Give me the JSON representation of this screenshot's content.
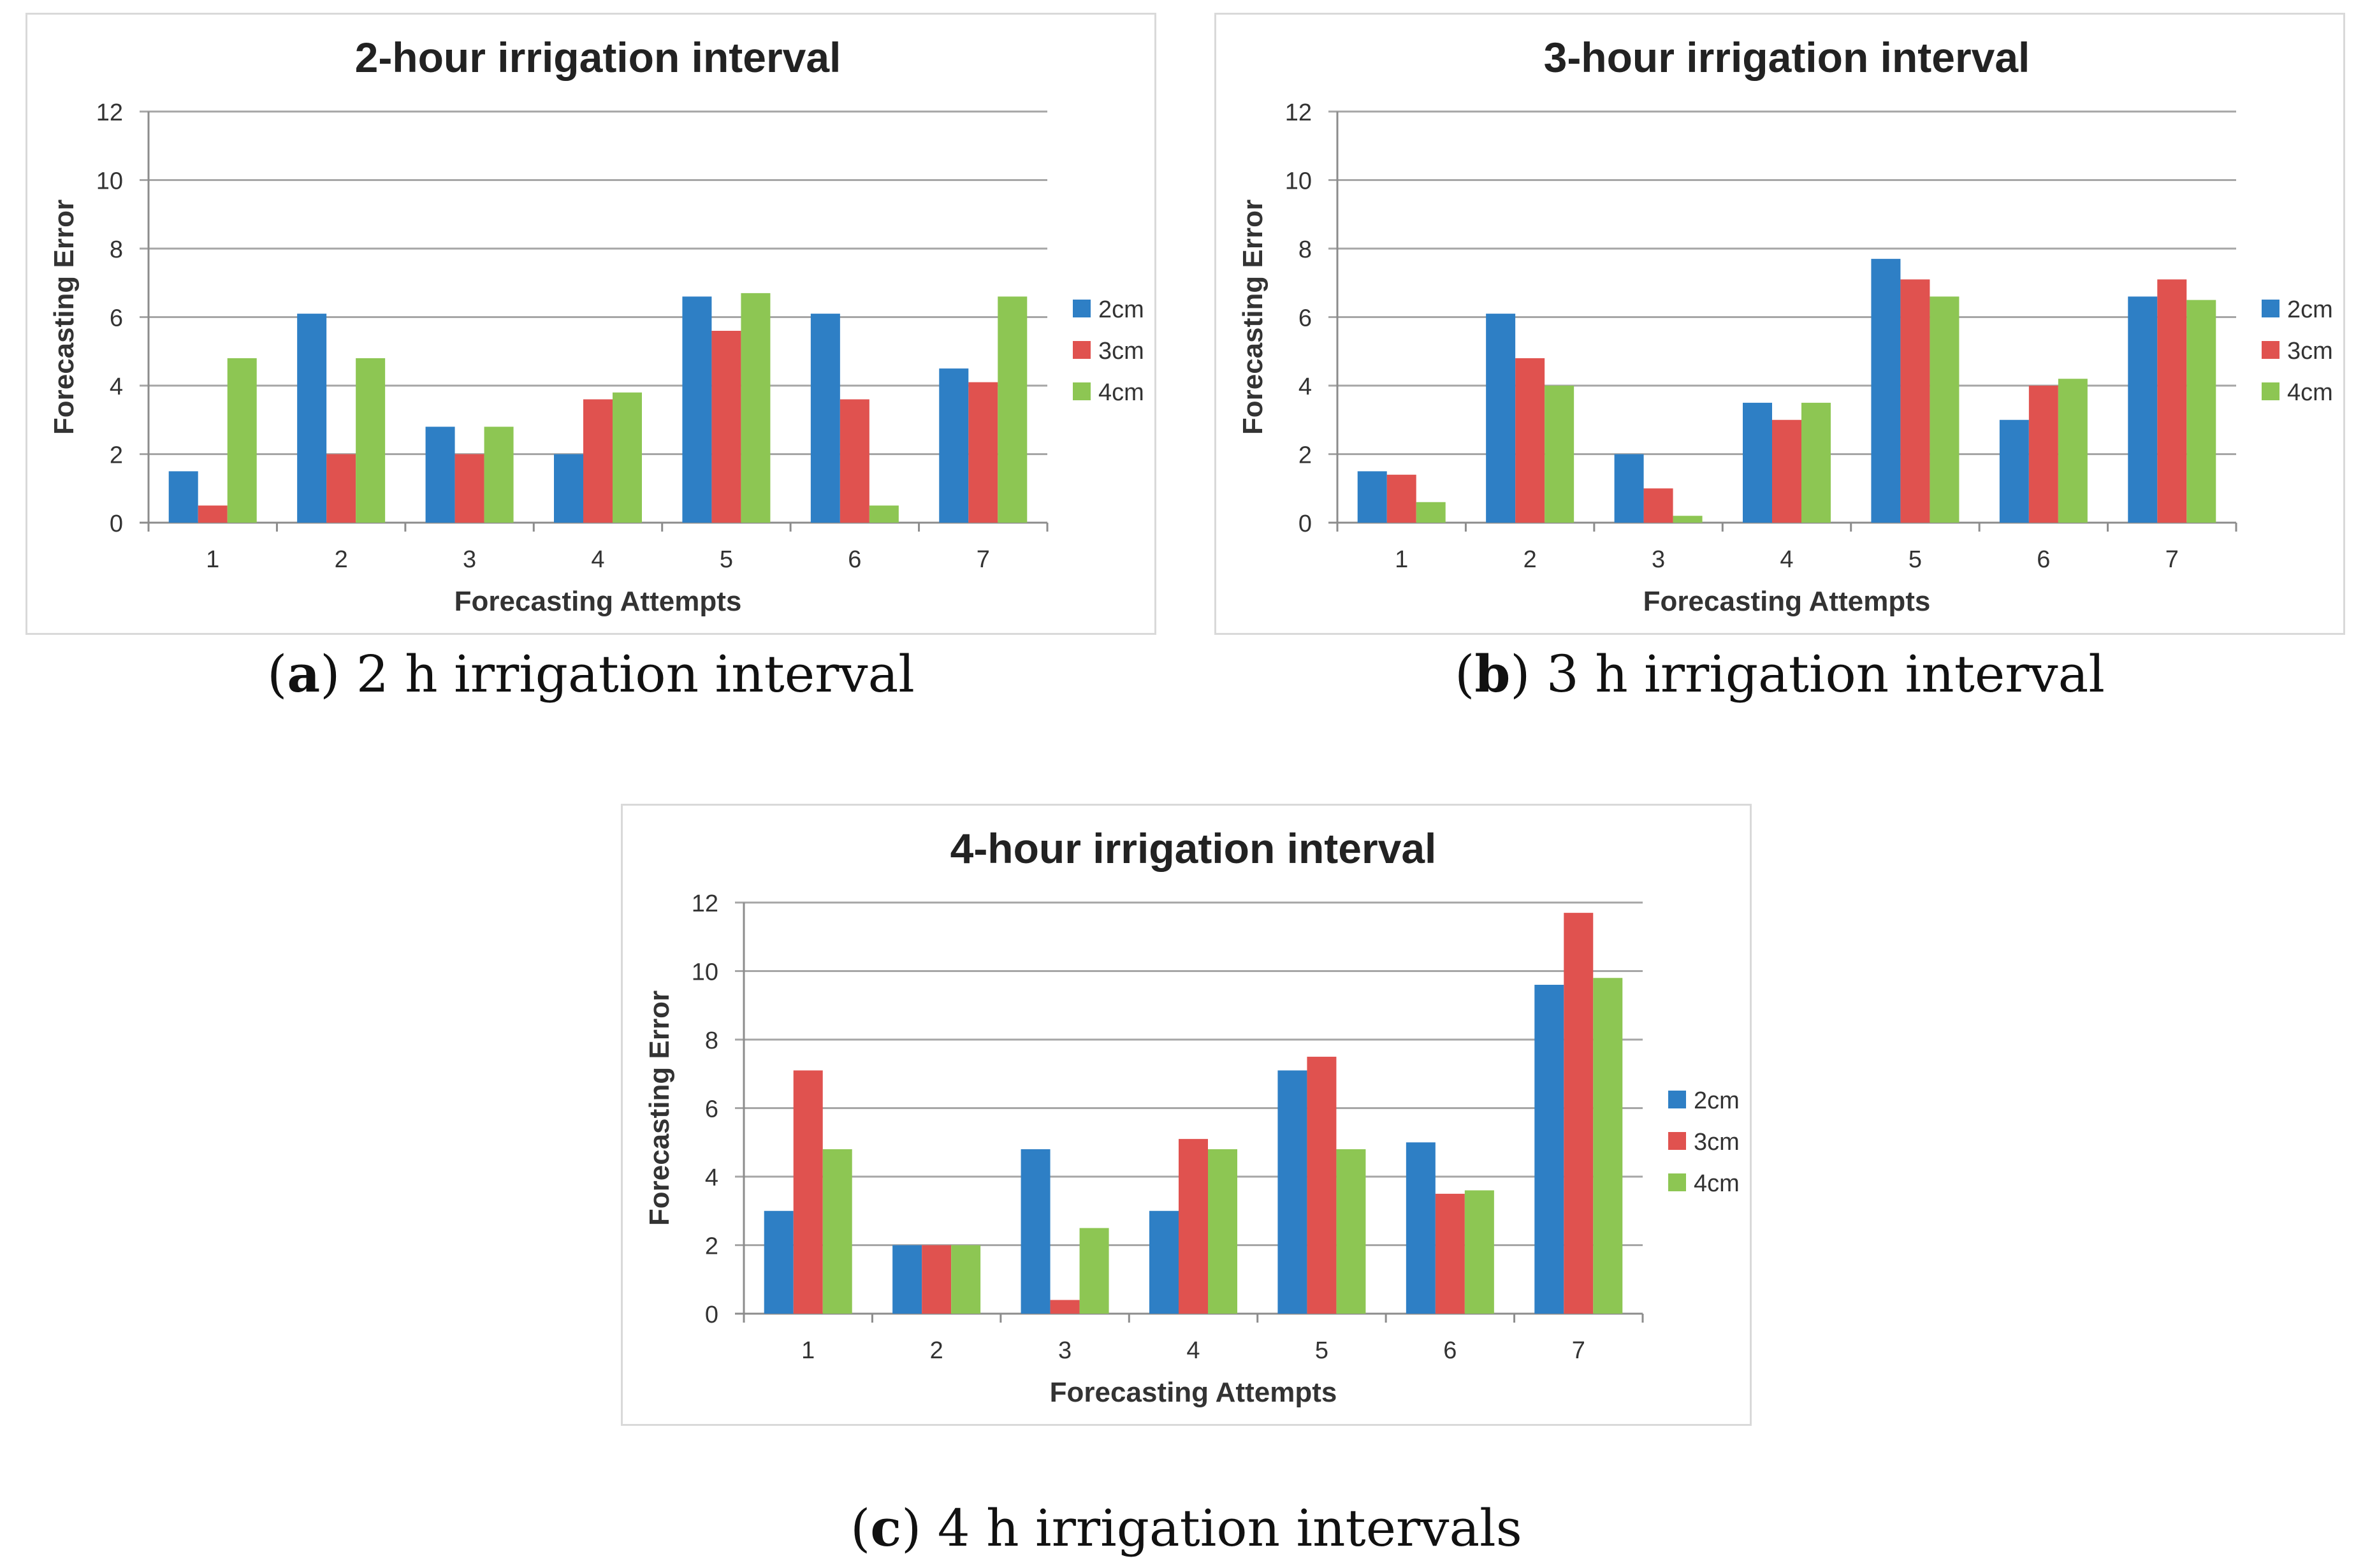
{
  "chart_data": [
    {
      "type": "bar",
      "title": "2-hour irrigation interval",
      "xlabel": "Forecasting Attempts",
      "ylabel": "Forecasting Error",
      "categories": [
        "1",
        "2",
        "3",
        "4",
        "5",
        "6",
        "7"
      ],
      "ylim": [
        0,
        12
      ],
      "yticks": [
        "0",
        "2",
        "4",
        "6",
        "8",
        "10",
        "12"
      ],
      "series": [
        {
          "name": "2cm",
          "color": "#2e7fc5",
          "values": [
            1.5,
            6.1,
            2.8,
            2.0,
            6.6,
            6.1,
            4.5
          ]
        },
        {
          "name": "3cm",
          "color": "#e0524f",
          "values": [
            0.5,
            2.0,
            2.0,
            3.6,
            5.6,
            3.6,
            4.1
          ]
        },
        {
          "name": "4cm",
          "color": "#8dc653",
          "values": [
            4.8,
            4.8,
            2.8,
            3.8,
            6.7,
            0.5,
            6.6
          ]
        }
      ],
      "grid": true,
      "legend": "right"
    },
    {
      "type": "bar",
      "title": "3-hour irrigation interval",
      "xlabel": "Forecasting Attempts",
      "ylabel": "Forecasting Error",
      "categories": [
        "1",
        "2",
        "3",
        "4",
        "5",
        "6",
        "7"
      ],
      "ylim": [
        0,
        12
      ],
      "yticks": [
        "0",
        "2",
        "4",
        "6",
        "8",
        "10",
        "12"
      ],
      "series": [
        {
          "name": "2cm",
          "color": "#2e7fc5",
          "values": [
            1.5,
            6.1,
            2.0,
            3.5,
            7.7,
            3.0,
            6.6
          ]
        },
        {
          "name": "3cm",
          "color": "#e0524f",
          "values": [
            1.4,
            4.8,
            1.0,
            3.0,
            7.1,
            4.0,
            7.1
          ]
        },
        {
          "name": "4cm",
          "color": "#8dc653",
          "values": [
            0.6,
            4.0,
            0.2,
            3.5,
            6.6,
            4.2,
            6.5
          ]
        }
      ],
      "grid": true,
      "legend": "right"
    },
    {
      "type": "bar",
      "title": "4-hour irrigation interval",
      "xlabel": "Forecasting Attempts",
      "ylabel": "Forecasting Error",
      "categories": [
        "1",
        "2",
        "3",
        "4",
        "5",
        "6",
        "7"
      ],
      "ylim": [
        0,
        12
      ],
      "yticks": [
        "0",
        "2",
        "4",
        "6",
        "8",
        "10",
        "12"
      ],
      "series": [
        {
          "name": "2cm",
          "color": "#2e7fc5",
          "values": [
            3.0,
            2.0,
            4.8,
            3.0,
            7.1,
            5.0,
            9.6
          ]
        },
        {
          "name": "3cm",
          "color": "#e0524f",
          "values": [
            7.1,
            2.0,
            0.4,
            5.1,
            7.5,
            3.5,
            11.7
          ]
        },
        {
          "name": "4cm",
          "color": "#8dc653",
          "values": [
            4.8,
            2.0,
            2.5,
            4.8,
            4.8,
            3.6,
            9.8
          ]
        }
      ],
      "grid": true,
      "legend": "right"
    }
  ],
  "captions": [
    {
      "letter": "a",
      "text": "2 h irrigation interval"
    },
    {
      "letter": "b",
      "text": "3 h irrigation interval"
    },
    {
      "letter": "c",
      "text": "4 h irrigation intervals"
    }
  ]
}
